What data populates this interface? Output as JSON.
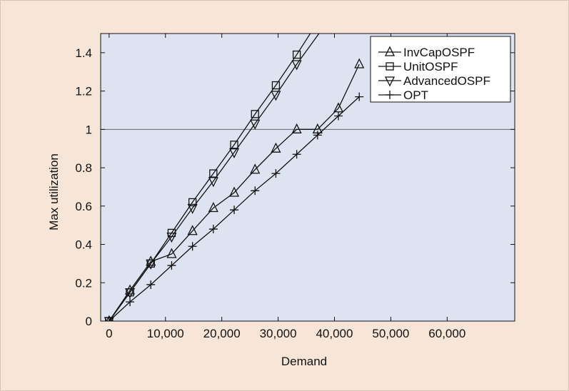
{
  "colors": {
    "figure_background": "#f7e6d8",
    "plot_background": "#dde3f1",
    "line": "#111111",
    "reference_line": "#666666"
  },
  "chart_data": {
    "type": "line",
    "xlabel": "Demand",
    "ylabel": "Max utilization",
    "xlim": [
      -1500,
      72000
    ],
    "ylim": [
      0,
      1.5
    ],
    "x_ticks": [
      0,
      10000,
      20000,
      30000,
      40000,
      50000,
      60000
    ],
    "x_tick_labels": [
      "0",
      "10,000",
      "20,000",
      "30,000",
      "40,000",
      "50,000",
      "60,000"
    ],
    "y_ticks": [
      0,
      0.2,
      0.4,
      0.6,
      0.8,
      1,
      1.2,
      1.4
    ],
    "y_tick_labels": [
      "0",
      "0.2",
      "0.4",
      "0.6",
      "0.8",
      "1",
      "1.2",
      "1.4"
    ],
    "reference_line_y": 1,
    "grid": false,
    "legend_position": "top-right",
    "series": [
      {
        "name": "InvCapOSPF",
        "marker": "triangle-up",
        "x": [
          0,
          3700,
          7400,
          11100,
          14800,
          18500,
          22200,
          25900,
          29600,
          33300,
          37000,
          40700,
          44400
        ],
        "y": [
          0.0,
          0.16,
          0.31,
          0.35,
          0.47,
          0.59,
          0.67,
          0.79,
          0.9,
          1.0,
          1.0,
          1.11,
          1.34
        ]
      },
      {
        "name": "UnitOSPF",
        "marker": "square",
        "x": [
          0,
          3700,
          7400,
          11100,
          14800,
          18500,
          22200,
          25900,
          29600,
          33300,
          36800
        ],
        "y": [
          0.0,
          0.15,
          0.3,
          0.46,
          0.62,
          0.77,
          0.92,
          1.08,
          1.23,
          1.39,
          1.55
        ]
      },
      {
        "name": "AdvancedOSPF",
        "marker": "triangle-down",
        "x": [
          0,
          3700,
          7400,
          11100,
          14800,
          18500,
          22200,
          25900,
          29600,
          33300,
          38000
        ],
        "y": [
          0.0,
          0.15,
          0.3,
          0.44,
          0.59,
          0.73,
          0.88,
          1.03,
          1.18,
          1.34,
          1.53
        ]
      },
      {
        "name": "OPT",
        "marker": "plus",
        "x": [
          0,
          3700,
          7400,
          11100,
          14800,
          18500,
          22200,
          25900,
          29600,
          33300,
          37000,
          40700,
          44400
        ],
        "y": [
          0.0,
          0.1,
          0.19,
          0.29,
          0.39,
          0.48,
          0.58,
          0.68,
          0.77,
          0.87,
          0.97,
          1.07,
          1.17
        ]
      }
    ]
  }
}
